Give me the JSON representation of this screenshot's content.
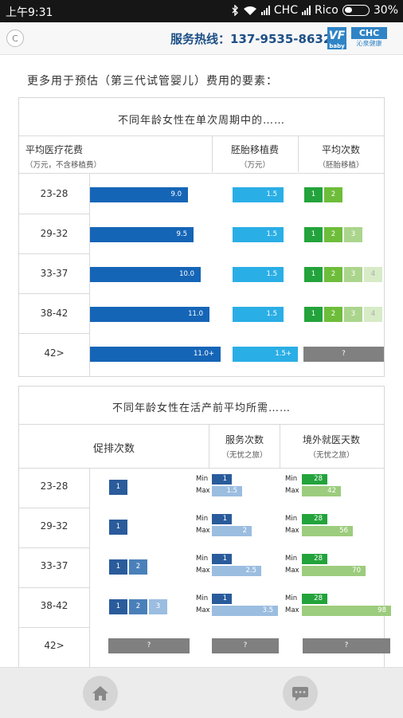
{
  "status": {
    "time": "上午9:31",
    "carrier1": "CHC",
    "carrier2": "Rico",
    "battery": "30%"
  },
  "header": {
    "back_label": "C",
    "hotline": "服务热线：137-9535-8632",
    "logo1": "VF",
    "logo1_sub": "baby",
    "logo2": "CHC",
    "logo2_sub": "沁泉健康"
  },
  "main_heading": "更多用于预估（第三代试管婴儿）费用的要素：",
  "table1": {
    "title": "不同年龄女性在单次周期中的……",
    "col1": {
      "label": "平均医疗花费",
      "sub": "（万元，不含移植费）"
    },
    "col2": {
      "label": "胚胎移植费",
      "sub": "（万元）"
    },
    "col3": {
      "label": "平均次数",
      "sub": "（胚胎移植）"
    },
    "rows": [
      {
        "age": "23-28",
        "medical": "9.0",
        "transfer": "1.5",
        "counts": [
          "1",
          "2"
        ]
      },
      {
        "age": "29-32",
        "medical": "9.5",
        "transfer": "1.5",
        "counts": [
          "1",
          "2",
          "3"
        ]
      },
      {
        "age": "33-37",
        "medical": "10.0",
        "transfer": "1.5",
        "counts": [
          "1",
          "2",
          "3",
          "4"
        ]
      },
      {
        "age": "38-42",
        "medical": "11.0",
        "transfer": "1.5",
        "counts": [
          "1",
          "2",
          "3",
          "4"
        ]
      },
      {
        "age": "42>",
        "medical": "11.0+",
        "transfer": "1.5+",
        "counts_unknown": "?"
      }
    ]
  },
  "table2": {
    "title": "不同年龄女性在活产前平均所需……",
    "col1": {
      "label": "促排次数"
    },
    "col2": {
      "label": "服务次数",
      "sub": "（无忧之旅）"
    },
    "col3": {
      "label": "境外就医天数",
      "sub": "（无忧之旅）"
    },
    "min_label": "Min",
    "max_label": "Max",
    "rows": [
      {
        "age": "23-28",
        "stims": [
          "1"
        ],
        "service_min": "1",
        "service_max": "1.5",
        "days_min": "28",
        "days_max": "42"
      },
      {
        "age": "29-32",
        "stims": [
          "1"
        ],
        "service_min": "1",
        "service_max": "2",
        "days_min": "28",
        "days_max": "56"
      },
      {
        "age": "33-37",
        "stims": [
          "1",
          "2"
        ],
        "service_min": "1",
        "service_max": "2.5",
        "days_min": "28",
        "days_max": "70"
      },
      {
        "age": "38-42",
        "stims": [
          "1",
          "2",
          "3"
        ],
        "service_min": "1",
        "service_max": "3.5",
        "days_min": "28",
        "days_max": "98"
      },
      {
        "age": "42>",
        "unknown": "?"
      }
    ]
  },
  "icons": {
    "home": "home-icon",
    "chat": "chat-icon",
    "wifi": "wifi-icon",
    "bluetooth": "bluetooth-icon"
  }
}
